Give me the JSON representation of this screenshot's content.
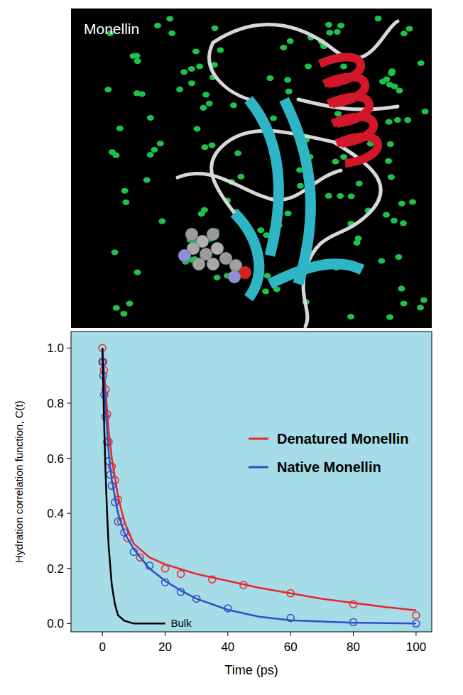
{
  "image_panel": {
    "title": "Monellin"
  },
  "chart_data": {
    "type": "line",
    "x_label": "Time (ps)",
    "y_label": "Hydration correlation function, C(t)",
    "xlim": [
      -10,
      105
    ],
    "ylim": [
      -0.03,
      1.06
    ],
    "xticks": [
      0,
      20,
      40,
      60,
      80,
      100
    ],
    "yticks": [
      {
        "value": 0,
        "label": "0.0"
      },
      {
        "value": 0.2,
        "label": "0.2"
      },
      {
        "value": 0.4,
        "label": "0.4"
      },
      {
        "value": 0.6,
        "label": "0.6"
      },
      {
        "value": 0.8,
        "label": "0.8"
      },
      {
        "value": 1,
        "label": "1.0"
      }
    ],
    "grid": false,
    "legend": "right",
    "series": [
      {
        "name": "Denatured Monellin",
        "color": "#e8262b",
        "type": "line",
        "line_style": "solid",
        "x": [
          0,
          1,
          2,
          3,
          5,
          7,
          10,
          15,
          20,
          30,
          40,
          50,
          60,
          70,
          80,
          90,
          100
        ],
        "values": [
          1.0,
          0.85,
          0.7,
          0.6,
          0.46,
          0.37,
          0.29,
          0.24,
          0.215,
          0.18,
          0.155,
          0.13,
          0.11,
          0.09,
          0.075,
          0.06,
          0.048
        ]
      },
      {
        "name": "Native Monellin",
        "color": "#2f4fc6",
        "type": "line",
        "line_style": "solid",
        "x": [
          0,
          1,
          2,
          3,
          5,
          7,
          10,
          15,
          20,
          25,
          30,
          40,
          50,
          60,
          80,
          100
        ],
        "values": [
          1.0,
          0.78,
          0.62,
          0.52,
          0.4,
          0.33,
          0.27,
          0.2,
          0.155,
          0.12,
          0.09,
          0.05,
          0.025,
          0.012,
          0.003,
          0.0
        ]
      },
      {
        "color": "#e8262b",
        "type": "scatter",
        "marker": "circle",
        "x": [
          0,
          0.3,
          0.5,
          1,
          1.5,
          2,
          3,
          4,
          5,
          6,
          8,
          12,
          20,
          25,
          35,
          45,
          60,
          80,
          100
        ],
        "values": [
          1.0,
          0.95,
          0.92,
          0.85,
          0.76,
          0.66,
          0.57,
          0.52,
          0.45,
          0.37,
          0.31,
          0.24,
          0.2,
          0.18,
          0.16,
          0.14,
          0.11,
          0.07,
          0.03
        ]
      },
      {
        "color": "#2f4fc6",
        "type": "scatter",
        "marker": "circle",
        "x": [
          0,
          0.3,
          0.6,
          1,
          1.5,
          2,
          2.5,
          3,
          4,
          5,
          7,
          10,
          15,
          20,
          25,
          30,
          40,
          60,
          80,
          100
        ],
        "values": [
          0.95,
          0.9,
          0.83,
          0.75,
          0.66,
          0.59,
          0.54,
          0.5,
          0.44,
          0.37,
          0.33,
          0.26,
          0.21,
          0.15,
          0.115,
          0.09,
          0.055,
          0.02,
          0.005,
          0.0
        ]
      },
      {
        "color": "#000000",
        "type": "line",
        "line_style": "solid",
        "x": [
          0,
          0.5,
          1,
          1.5,
          2,
          3,
          4,
          5,
          7,
          10,
          15,
          20
        ],
        "values": [
          1.0,
          0.75,
          0.55,
          0.4,
          0.28,
          0.14,
          0.07,
          0.03,
          0.01,
          0.0,
          0.0,
          0.0
        ]
      }
    ],
    "annotations": [
      {
        "text": "Bulk",
        "x": 20,
        "y": 0
      }
    ]
  }
}
